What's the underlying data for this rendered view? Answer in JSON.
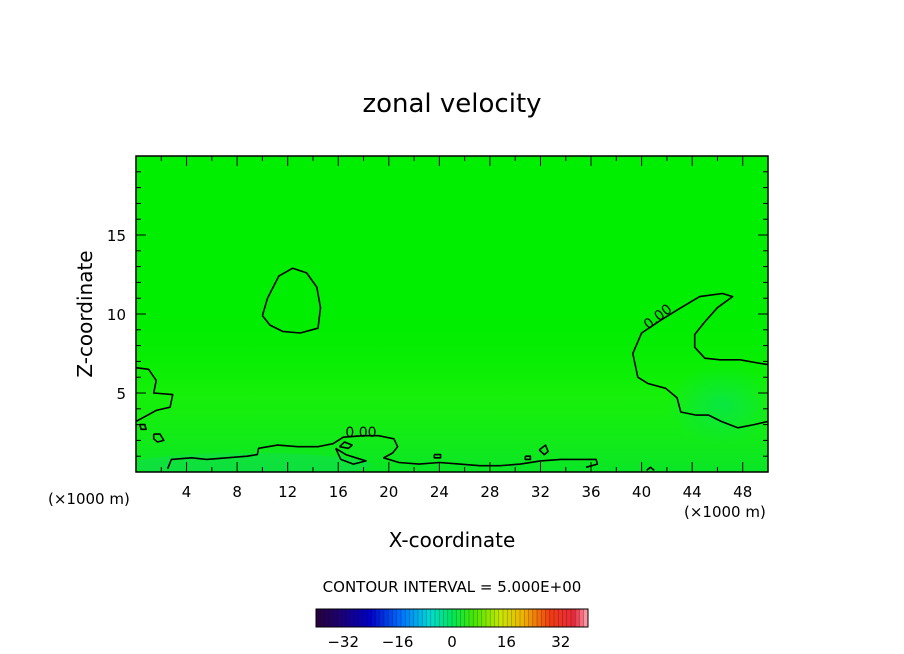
{
  "chart_data": {
    "type": "contour",
    "title": "zonal velocity",
    "xlabel": "X-coordinate",
    "ylabel": "Z-coordinate",
    "x_unit_left": "(×1000 m)",
    "x_unit_right": "(×1000 m)",
    "xlim": [
      0,
      50
    ],
    "ylim": [
      0,
      20
    ],
    "x_ticks": [
      4,
      8,
      12,
      16,
      20,
      24,
      28,
      32,
      36,
      40,
      44,
      48
    ],
    "y_ticks": [
      5,
      10,
      15
    ],
    "grid": false,
    "contour_label": "0.00",
    "contour_interval_text": "CONTOUR INTERVAL = 5.000E+00",
    "colorbar": {
      "range": [
        -40,
        40
      ],
      "tick_values": [
        -32,
        -16,
        0,
        16,
        32
      ],
      "tick_labels": [
        "−32",
        "−16",
        "0",
        "16",
        "32"
      ]
    },
    "background_value_color": "#00ee00",
    "zero_contours": [
      {
        "name": "upper-left-blob",
        "points": [
          [
            10,
            9.9
          ],
          [
            10.4,
            11
          ],
          [
            11.3,
            12.4
          ],
          [
            12.4,
            12.9
          ],
          [
            13.5,
            12.6
          ],
          [
            14.3,
            11.7
          ],
          [
            14.6,
            10.4
          ],
          [
            14.4,
            9.1
          ],
          [
            13,
            8.8
          ],
          [
            11.6,
            8.9
          ],
          [
            10.6,
            9.3
          ],
          [
            10,
            9.9
          ]
        ]
      },
      {
        "name": "right-hook",
        "points": [
          [
            50,
            6.8
          ],
          [
            49.2,
            6.9
          ],
          [
            47.8,
            7.1
          ],
          [
            46.2,
            7.1
          ],
          [
            45,
            7.2
          ],
          [
            44.2,
            7.9
          ],
          [
            44.2,
            8.7
          ],
          [
            45,
            9.5
          ],
          [
            46,
            10.4
          ],
          [
            47.2,
            11.1
          ],
          [
            46.4,
            11.3
          ],
          [
            44.6,
            11.1
          ],
          [
            42.9,
            10.3
          ],
          [
            41.5,
            9.6
          ],
          [
            40,
            8.8
          ],
          [
            39.3,
            7.5
          ],
          [
            39.7,
            6
          ],
          [
            40.5,
            5.6
          ],
          [
            41.9,
            5.3
          ],
          [
            42.8,
            4.7
          ],
          [
            43.1,
            3.8
          ],
          [
            44.3,
            3.6
          ],
          [
            45.3,
            3.6
          ],
          [
            46.3,
            3.2
          ],
          [
            47.6,
            2.8
          ],
          [
            48.9,
            3
          ],
          [
            50,
            3.2
          ]
        ]
      },
      {
        "name": "left-edge",
        "points": [
          [
            0,
            6.6
          ],
          [
            1,
            6.5
          ],
          [
            1.6,
            5.8
          ],
          [
            1.4,
            5
          ],
          [
            2.9,
            4.9
          ],
          [
            2.7,
            4.1
          ],
          [
            1.6,
            3.9
          ],
          [
            0.7,
            3.5
          ],
          [
            0,
            3.2
          ]
        ]
      },
      {
        "name": "left-dot-1",
        "points": [
          [
            1.4,
            2.4
          ],
          [
            1.9,
            2.4
          ],
          [
            2.2,
            2
          ],
          [
            1.7,
            1.9
          ],
          [
            1.4,
            2.1
          ],
          [
            1.4,
            2.4
          ]
        ]
      },
      {
        "name": "left-dot-2",
        "points": [
          [
            0.3,
            3
          ],
          [
            0.7,
            3
          ],
          [
            0.8,
            2.7
          ],
          [
            0.4,
            2.7
          ],
          [
            0.3,
            3
          ]
        ]
      },
      {
        "name": "bottom-boundary",
        "points": [
          [
            2.5,
            0.2
          ],
          [
            2.8,
            0.8
          ],
          [
            4.4,
            0.9
          ],
          [
            5.6,
            0.8
          ],
          [
            7.2,
            0.9
          ],
          [
            8.8,
            1
          ],
          [
            9.6,
            1.1
          ],
          [
            9.7,
            1.5
          ],
          [
            11.2,
            1.7
          ],
          [
            12.8,
            1.6
          ],
          [
            14.4,
            1.6
          ],
          [
            15.6,
            1.8
          ],
          [
            16.4,
            2.2
          ],
          [
            18,
            2.3
          ],
          [
            19.2,
            2.3
          ],
          [
            20.4,
            2.1
          ],
          [
            20.7,
            1.6
          ],
          [
            20.3,
            1.2
          ],
          [
            19.6,
            0.9
          ],
          [
            20.8,
            0.6
          ],
          [
            22.4,
            0.5
          ],
          [
            24,
            0.6
          ],
          [
            25.6,
            0.5
          ],
          [
            27.2,
            0.4
          ],
          [
            28.8,
            0.4
          ],
          [
            30.4,
            0.5
          ],
          [
            32,
            0.7
          ],
          [
            33.6,
            0.8
          ],
          [
            35.2,
            0.8
          ],
          [
            36.4,
            0.8
          ],
          [
            36.5,
            0.5
          ],
          [
            35.6,
            0.3
          ]
        ]
      },
      {
        "name": "bump-17",
        "points": [
          [
            15.8,
            1.5
          ],
          [
            16.6,
            1.1
          ],
          [
            17.4,
            0.9
          ],
          [
            18.2,
            0.7
          ],
          [
            17.2,
            0.5
          ],
          [
            16.2,
            0.8
          ],
          [
            15.8,
            1.5
          ]
        ]
      },
      {
        "name": "dot-16",
        "points": [
          [
            16.1,
            1.6
          ],
          [
            16.8,
            1.5
          ],
          [
            17.1,
            1.7
          ],
          [
            16.5,
            1.9
          ],
          [
            16.1,
            1.6
          ]
        ]
      },
      {
        "name": "dot-24",
        "points": [
          [
            23.6,
            1.1
          ],
          [
            24.1,
            1.1
          ],
          [
            24.1,
            0.9
          ],
          [
            23.6,
            0.9
          ],
          [
            23.6,
            1.1
          ]
        ]
      },
      {
        "name": "dot-32",
        "points": [
          [
            31.9,
            1.4
          ],
          [
            32.4,
            1.7
          ],
          [
            32.6,
            1.3
          ],
          [
            32.3,
            1.1
          ],
          [
            31.9,
            1.4
          ]
        ]
      },
      {
        "name": "dot-31",
        "points": [
          [
            30.8,
            1
          ],
          [
            31.2,
            1
          ],
          [
            31.2,
            0.8
          ],
          [
            30.8,
            0.8
          ],
          [
            30.8,
            1
          ]
        ]
      },
      {
        "name": "dot-40",
        "points": [
          [
            40.4,
            0.1
          ],
          [
            40.7,
            0.3
          ],
          [
            41,
            0.1
          ]
        ]
      }
    ],
    "zero_contour_labels": [
      {
        "x": 41.5,
        "y": 9.6,
        "angle": -38
      },
      {
        "x": 17.8,
        "y": 2.2,
        "angle": 0
      }
    ]
  }
}
